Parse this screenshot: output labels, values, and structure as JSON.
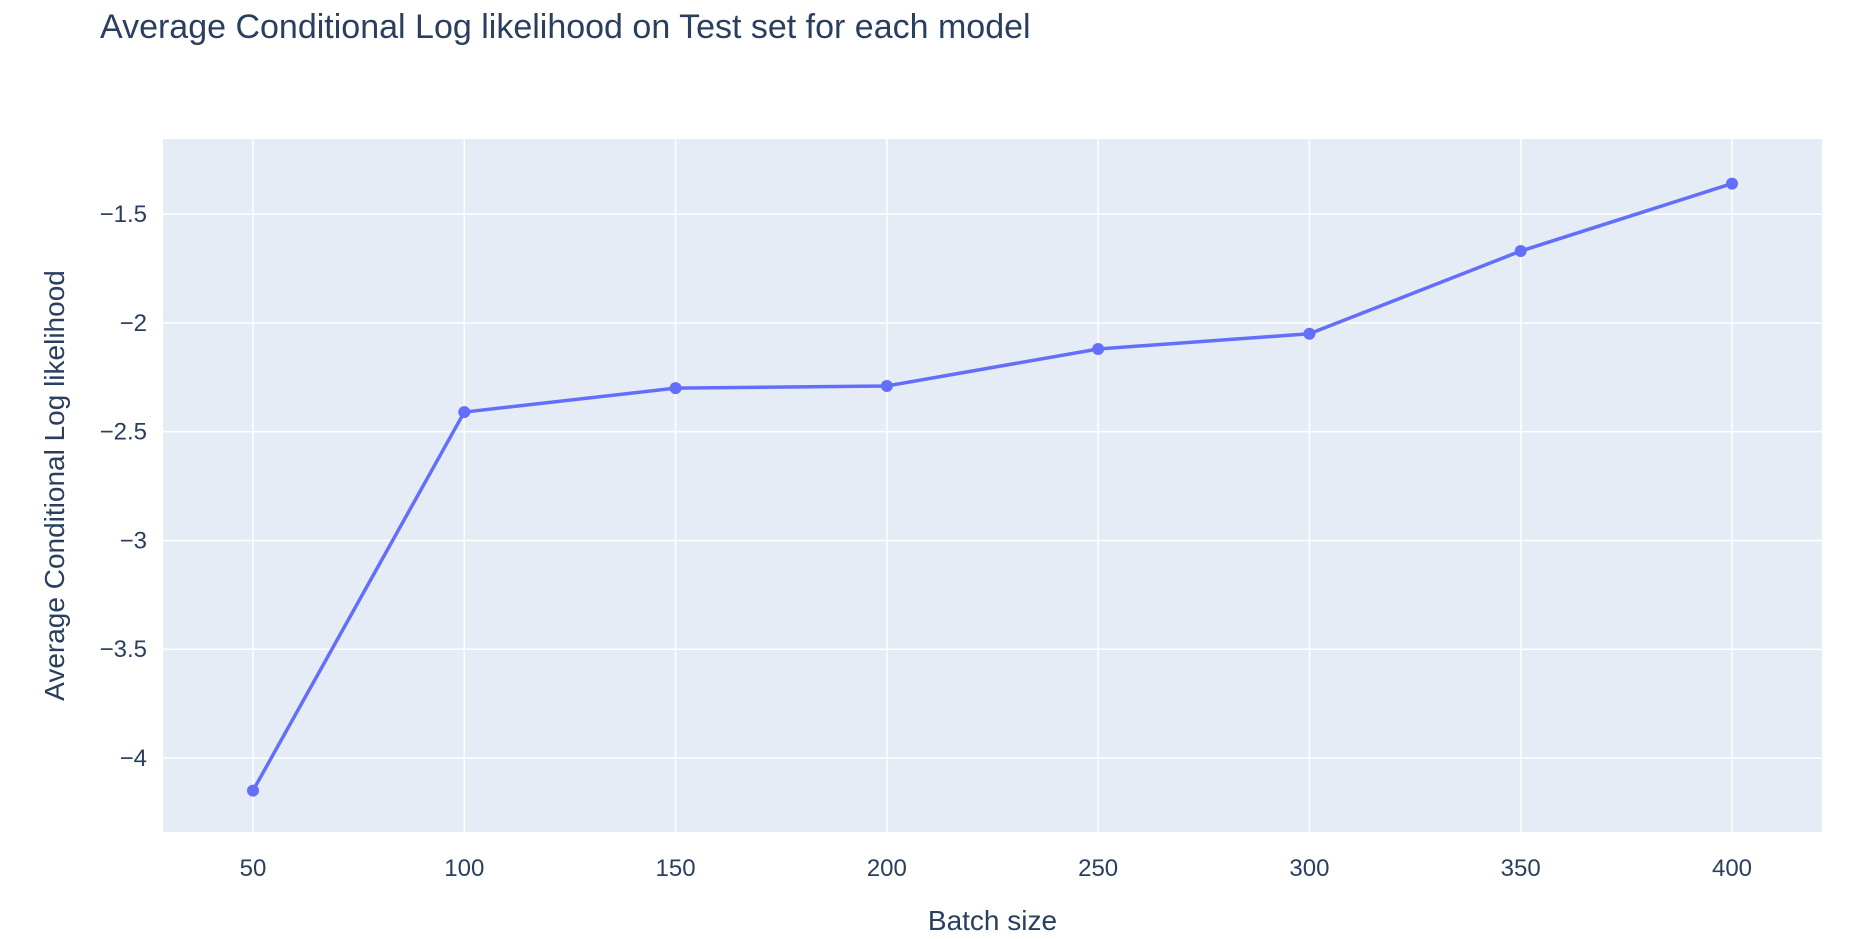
{
  "chart_data": {
    "type": "line",
    "title": "Average Conditional Log likelihood on Test set for each model",
    "xlabel": "Batch size",
    "ylabel": "Average Conditional Log likelihood",
    "x": [
      50,
      100,
      150,
      200,
      250,
      300,
      350,
      400
    ],
    "series": [
      {
        "values": [
          -4.15,
          -2.41,
          -2.3,
          -2.29,
          -2.12,
          -2.05,
          -1.67,
          -1.36
        ]
      }
    ],
    "x_ticks": [
      50,
      100,
      150,
      200,
      250,
      300,
      350,
      400
    ],
    "x_tick_labels": [
      "50",
      "100",
      "150",
      "200",
      "250",
      "300",
      "350",
      "400"
    ],
    "y_ticks": [
      -4,
      -3.5,
      -3,
      -2.5,
      -2,
      -1.5
    ],
    "y_tick_labels": [
      "−4",
      "−3.5",
      "−3",
      "−2.5",
      "−2",
      "−1.5"
    ],
    "xlim": [
      28.7,
      421.3
    ],
    "ylim": [
      -4.34,
      -1.155
    ],
    "grid": true,
    "legend": "none",
    "colors": {
      "line": "#636efa",
      "plot_background": "#e5ecf6",
      "grid": "#ffffff",
      "text": "#2a3f5f"
    }
  }
}
